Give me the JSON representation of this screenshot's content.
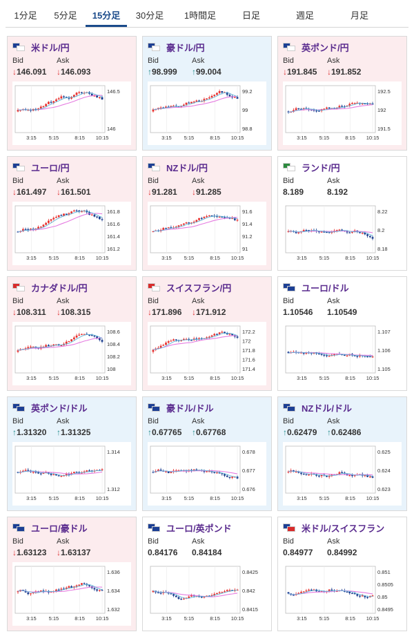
{
  "tabs": [
    {
      "label": "1分足",
      "active": false
    },
    {
      "label": "5分足",
      "active": false
    },
    {
      "label": "15分足",
      "active": true
    },
    {
      "label": "30分足",
      "active": false
    },
    {
      "label": "1時間足",
      "active": false
    },
    {
      "label": "日足",
      "active": false
    },
    {
      "label": "週足",
      "active": false
    },
    {
      "label": "月足",
      "active": false
    }
  ],
  "labels": {
    "bid": "Bid",
    "ask": "Ask"
  },
  "colors": {
    "candle_up": "#e8302e",
    "candle_down": "#1a3c8e",
    "ma_fast": "#5fb4d8",
    "ma_slow": "#e57ae0",
    "pair_text": "#5a2b8e"
  },
  "cards": [
    {
      "pair": "米ドル/円",
      "flags": [
        "us-flag",
        "jp-flag"
      ],
      "bg": "pink",
      "bid": "146.091",
      "ask": "146.093",
      "dir": "down",
      "chart": {
        "ticks": [
          "146.5",
          "146"
        ],
        "xlabels": [
          "3:15",
          "5:15",
          "8:15",
          "10:15"
        ]
      }
    },
    {
      "pair": "豪ドル/円",
      "flags": [
        "au-flag",
        "jp-flag"
      ],
      "bg": "blue",
      "bid": "98.999",
      "ask": "99.004",
      "dir": "up",
      "chart": {
        "ticks": [
          "99.2",
          "99",
          "98.8"
        ],
        "xlabels": [
          "3:15",
          "5:15",
          "8:15",
          "10:15"
        ]
      }
    },
    {
      "pair": "英ポンド/円",
      "flags": [
        "uk-flag",
        "jp-flag"
      ],
      "bg": "pink",
      "bid": "191.845",
      "ask": "191.852",
      "dir": "down",
      "chart": {
        "ticks": [
          "192.5",
          "192",
          "191.5"
        ],
        "xlabels": [
          "3:15",
          "5:15",
          "8:15",
          "10:15"
        ]
      }
    },
    {
      "pair": "ユーロ/円",
      "flags": [
        "eu-flag",
        "jp-flag"
      ],
      "bg": "pink",
      "bid": "161.497",
      "ask": "161.501",
      "dir": "down",
      "chart": {
        "ticks": [
          "161.8",
          "161.6",
          "161.4",
          "161.2"
        ],
        "xlabels": [
          "3:15",
          "5:15",
          "8:15",
          "10:15"
        ]
      }
    },
    {
      "pair": "NZドル/円",
      "flags": [
        "nz-flag",
        "jp-flag"
      ],
      "bg": "pink",
      "bid": "91.281",
      "ask": "91.285",
      "dir": "down",
      "chart": {
        "ticks": [
          "91.6",
          "91.4",
          "91.2",
          "91"
        ],
        "xlabels": [
          "3:15",
          "5:15",
          "8:15",
          "10:15"
        ]
      }
    },
    {
      "pair": "ランド/円",
      "flags": [
        "za-flag",
        "jp-flag"
      ],
      "bg": "white",
      "bid": "8.189",
      "ask": "8.192",
      "dir": "none",
      "chart": {
        "ticks": [
          "8.22",
          "8.2",
          "8.18"
        ],
        "xlabels": [
          "3:15",
          "5:15",
          "8:15",
          "10:15"
        ]
      }
    },
    {
      "pair": "カナダドル/円",
      "flags": [
        "ca-flag",
        "jp-flag"
      ],
      "bg": "pink",
      "bid": "108.311",
      "ask": "108.315",
      "dir": "down",
      "chart": {
        "ticks": [
          "108.6",
          "108.4",
          "108.2",
          "108"
        ],
        "xlabels": [
          "3:15",
          "5:15",
          "8:15",
          "10:15"
        ]
      }
    },
    {
      "pair": "スイスフラン/円",
      "flags": [
        "ch-flag",
        "jp-flag"
      ],
      "bg": "pink",
      "bid": "171.896",
      "ask": "171.912",
      "dir": "down",
      "chart": {
        "ticks": [
          "172.2",
          "172",
          "171.8",
          "171.6",
          "171.4"
        ],
        "xlabels": [
          "3:15",
          "5:15",
          "8:15",
          "10:15"
        ]
      }
    },
    {
      "pair": "ユーロ/ドル",
      "flags": [
        "eu-flag",
        "us-flag"
      ],
      "bg": "white",
      "bid": "1.10546",
      "ask": "1.10549",
      "dir": "none",
      "chart": {
        "ticks": [
          "1.107",
          "1.106",
          "1.105"
        ],
        "xlabels": [
          "3:15",
          "5:15",
          "8:15",
          "10:15"
        ]
      }
    },
    {
      "pair": "英ポンド/ドル",
      "flags": [
        "uk-flag",
        "us-flag"
      ],
      "bg": "blue",
      "bid": "1.31320",
      "ask": "1.31325",
      "dir": "up",
      "chart": {
        "ticks": [
          "1.314",
          "1.312"
        ],
        "xlabels": [
          "3:15",
          "5:15",
          "8:15",
          "10:15"
        ]
      }
    },
    {
      "pair": "豪ドル/ドル",
      "flags": [
        "au-flag",
        "us-flag"
      ],
      "bg": "blue",
      "bid": "0.67765",
      "ask": "0.67768",
      "dir": "up",
      "chart": {
        "ticks": [
          "0.678",
          "0.677",
          "0.676"
        ],
        "xlabels": [
          "3:15",
          "5:15",
          "8:15",
          "10:15"
        ]
      }
    },
    {
      "pair": "NZドル/ドル",
      "flags": [
        "nz-flag",
        "us-flag"
      ],
      "bg": "blue",
      "bid": "0.62479",
      "ask": "0.62486",
      "dir": "up",
      "chart": {
        "ticks": [
          "0.625",
          "0.624",
          "0.623"
        ],
        "xlabels": [
          "3:15",
          "5:15",
          "8:15",
          "10:15"
        ]
      }
    },
    {
      "pair": "ユーロ/豪ドル",
      "flags": [
        "eu-flag",
        "au-flag"
      ],
      "bg": "pink",
      "bid": "1.63123",
      "ask": "1.63137",
      "dir": "down",
      "chart": {
        "ticks": [
          "1.636",
          "1.634",
          "1.632"
        ],
        "xlabels": [
          "3:15",
          "5:15",
          "8:15",
          "10:15"
        ]
      }
    },
    {
      "pair": "ユーロ/英ポンド",
      "flags": [
        "eu-flag",
        "uk-flag"
      ],
      "bg": "white",
      "bid": "0.84176",
      "ask": "0.84184",
      "dir": "none",
      "chart": {
        "ticks": [
          "0.8425",
          "0.842",
          "0.8415"
        ],
        "xlabels": [
          "3:15",
          "5:15",
          "8:15",
          "10:15"
        ]
      }
    },
    {
      "pair": "米ドル/スイスフラン",
      "flags": [
        "us-flag",
        "ch-flag"
      ],
      "bg": "white",
      "bid": "0.84977",
      "ask": "0.84992",
      "dir": "none",
      "chart": {
        "ticks": [
          "0.851",
          "0.8505",
          "0.85",
          "0.8495"
        ],
        "xlabels": [
          "3:15",
          "5:15",
          "8:15",
          "10:15"
        ]
      }
    }
  ]
}
